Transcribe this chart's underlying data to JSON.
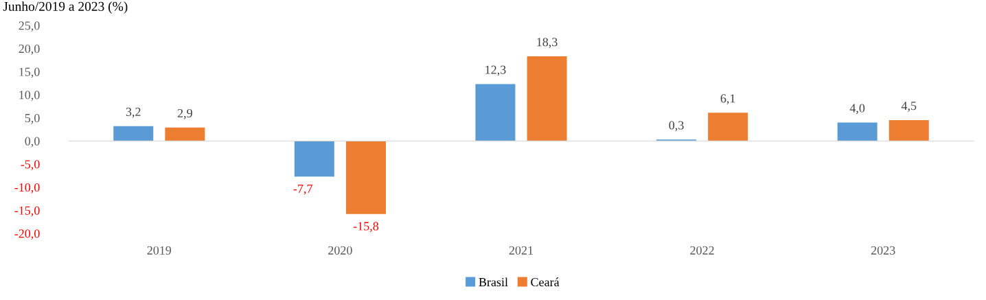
{
  "chart_data": {
    "type": "bar",
    "title": "Junho/2019 a 2023 (%)",
    "categories": [
      "2019",
      "2020",
      "2021",
      "2022",
      "2023"
    ],
    "series": [
      {
        "name": "Brasil",
        "color": "#5b9bd5",
        "values": [
          3.2,
          -7.7,
          12.3,
          0.3,
          4.0
        ]
      },
      {
        "name": "Ceará",
        "color": "#ed7d31",
        "values": [
          2.9,
          -15.8,
          18.3,
          6.1,
          4.5
        ]
      }
    ],
    "ylim": [
      -20,
      25
    ],
    "yticks": [
      {
        "value": -20,
        "label": "-20,0"
      },
      {
        "value": -15,
        "label": "-15,0"
      },
      {
        "value": -10,
        "label": "-10,0"
      },
      {
        "value": -5,
        "label": "-5,0"
      },
      {
        "value": 0,
        "label": "0,0"
      },
      {
        "value": 5,
        "label": "5,0"
      },
      {
        "value": 10,
        "label": "10,0"
      },
      {
        "value": 15,
        "label": "15,0"
      },
      {
        "value": 20,
        "label": "20,0"
      },
      {
        "value": 25,
        "label": "25,0"
      }
    ],
    "value_labels": [
      [
        "3,2",
        "-7,7",
        "12,3",
        "0,3",
        "4,0"
      ],
      [
        "2,9",
        "-15,8",
        "18,3",
        "6,1",
        "4,5"
      ]
    ],
    "legend": "bottom"
  }
}
